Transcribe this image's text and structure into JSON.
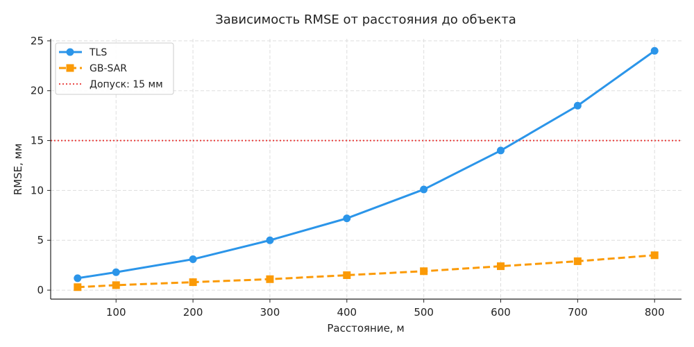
{
  "chart_data": {
    "type": "line",
    "title": "Зависимость RMSE от расстояния до объекта",
    "xlabel": "Расстояние, м",
    "ylabel": "RMSE, мм",
    "xlim": [
      15,
      835
    ],
    "ylim": [
      -0.9,
      25.2
    ],
    "xticks": [
      100,
      200,
      300,
      400,
      500,
      600,
      700,
      800
    ],
    "yticks": [
      0,
      5,
      10,
      15,
      20,
      25
    ],
    "grid": true,
    "legend_position": "top-left",
    "x": [
      50,
      100,
      200,
      300,
      400,
      500,
      600,
      700,
      800
    ],
    "series": [
      {
        "name": "TLS",
        "values": [
          1.2,
          1.8,
          3.1,
          5.0,
          7.2,
          10.1,
          14.0,
          18.5,
          24.0
        ],
        "color": "#2b95e9",
        "marker": "circle",
        "style": "solid"
      },
      {
        "name": "GB-SAR",
        "values": [
          0.3,
          0.5,
          0.8,
          1.1,
          1.5,
          1.9,
          2.4,
          2.9,
          3.5
        ],
        "color": "#fb9a06",
        "marker": "square",
        "style": "dashed"
      }
    ],
    "reference_line": {
      "label": "Допуск: 15 мм",
      "y": 15,
      "color": "#e8312f",
      "style": "dotted"
    }
  }
}
